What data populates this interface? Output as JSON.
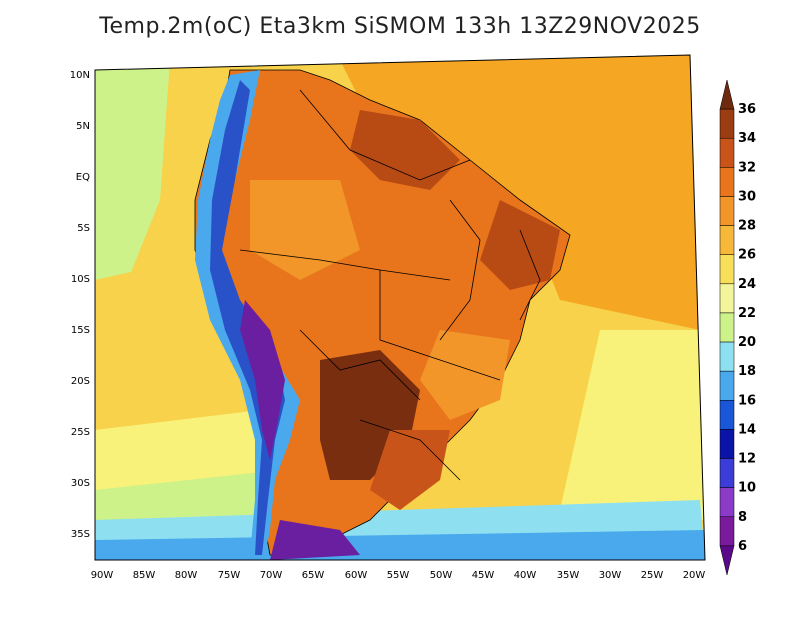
{
  "title": "Temp.2m(oC) Eta3km SiSMOM 133h 13Z29NOV2025",
  "map": {
    "variable": "2m temperature",
    "units": "oC",
    "lat_labels": [
      {
        "label": "10N",
        "lat": 10
      },
      {
        "label": "5N",
        "lat": 5
      },
      {
        "label": "EQ",
        "lat": 0
      },
      {
        "label": "5S",
        "lat": -5
      },
      {
        "label": "10S",
        "lat": -10
      },
      {
        "label": "15S",
        "lat": -15
      },
      {
        "label": "20S",
        "lat": -20
      },
      {
        "label": "25S",
        "lat": -25
      },
      {
        "label": "30S",
        "lat": -30
      },
      {
        "label": "35S",
        "lat": -35
      }
    ],
    "lon_labels": [
      {
        "label": "90W",
        "lon": -90
      },
      {
        "label": "85W",
        "lon": -85
      },
      {
        "label": "80W",
        "lon": -80
      },
      {
        "label": "75W",
        "lon": -75
      },
      {
        "label": "70W",
        "lon": -70
      },
      {
        "label": "65W",
        "lon": -65
      },
      {
        "label": "60W",
        "lon": -60
      },
      {
        "label": "55W",
        "lon": -55
      },
      {
        "label": "50W",
        "lon": -50
      },
      {
        "label": "45W",
        "lon": -45
      },
      {
        "label": "40W",
        "lon": -40
      },
      {
        "label": "35W",
        "lon": -35
      },
      {
        "label": "30W",
        "lon": -30
      },
      {
        "label": "25W",
        "lon": -25
      },
      {
        "label": "20W",
        "lon": -20
      }
    ],
    "colors": {
      "ocean_warm": "#f5a623",
      "ocean_mid": "#f7d24a",
      "ocean_cool": "#f9f27a",
      "ocean_green": "#cdf28a",
      "ocean_cyan": "#8ee0f0",
      "ocean_blue": "#4aa8ec",
      "land_hot": "#e8741c",
      "land_very_hot": "#b84a14",
      "land_extreme": "#7a2e10",
      "andes_cold": "#2a52c8",
      "andes_violet": "#6a1fa0"
    }
  },
  "colorbar": {
    "levels": [
      "36",
      "34",
      "32",
      "30",
      "28",
      "26",
      "24",
      "22",
      "20",
      "18",
      "16",
      "14",
      "12",
      "10",
      "8",
      "6"
    ],
    "bins": [
      "#6e2a0e",
      "#9c3c12",
      "#c8541a",
      "#e8741c",
      "#f2962a",
      "#f5b838",
      "#f7df5a",
      "#f2f59a",
      "#cdf28a",
      "#8ee0f0",
      "#4aa8ec",
      "#1a56d8",
      "#0a14a8",
      "#3c3cd8",
      "#8a3cc8",
      "#7a1a9c",
      "#5a0a88"
    ]
  }
}
